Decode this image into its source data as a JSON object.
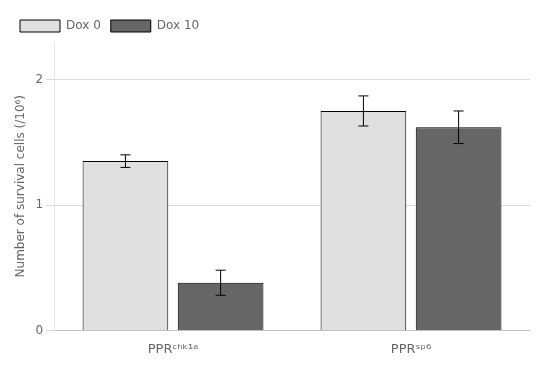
{
  "chart_data": {
    "type": "bar",
    "categories": [
      "PPRᶜʰᵏ¹ᵃ",
      "PPRˢᵖ⁶"
    ],
    "series": [
      {
        "name": "Dox 0",
        "color": "#e0e0e0",
        "values": [
          1.35,
          1.75
        ],
        "errors": [
          0.05,
          0.12
        ]
      },
      {
        "name": "Dox 10",
        "color": "#666666",
        "values": [
          0.38,
          1.62
        ],
        "errors": [
          0.1,
          0.13
        ]
      }
    ],
    "ylabel": "Number of survival cells (/10⁶)",
    "ylim": [
      0,
      2.3
    ],
    "yticks": [
      0,
      1,
      2
    ],
    "grid": true,
    "legend": "upper left"
  }
}
